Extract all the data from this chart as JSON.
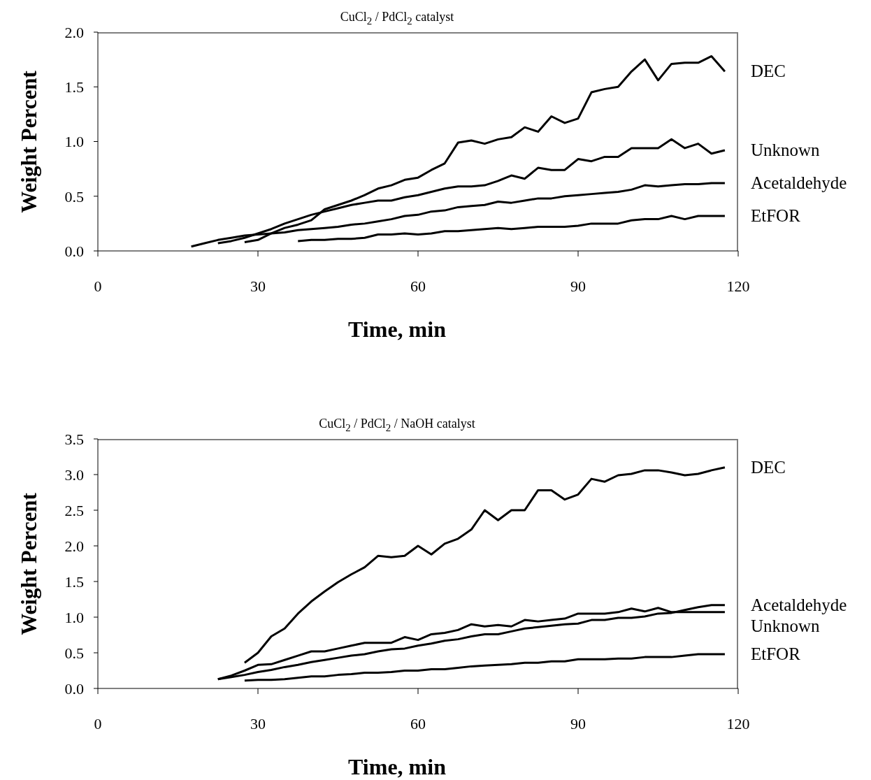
{
  "chart_data": [
    {
      "type": "line",
      "title": "CuCl$_{2}$ / PdCl$_{2}$ catalyst",
      "xlabel": "Time, min",
      "ylabel": "Weight Percent",
      "xlim": [
        0,
        120
      ],
      "xticks": [
        0,
        30,
        60,
        90,
        120
      ],
      "ylim": [
        0,
        2
      ],
      "yticks": [
        {
          "value": 0,
          "label": "0.0"
        },
        {
          "value": 0.5,
          "label": "0.5"
        },
        {
          "value": 1,
          "label": "1.0"
        },
        {
          "value": 1.5,
          "label": "1.5"
        },
        {
          "value": 2,
          "label": "2.0"
        }
      ],
      "series": [
        {
          "name": "DEC",
          "color": "#000000",
          "x": [
            27.5,
            30,
            32.5,
            35,
            37.5,
            40,
            42.5,
            45,
            47.5,
            50,
            52.5,
            55,
            57.5,
            60,
            62.5,
            65,
            67.5,
            70,
            72.5,
            75,
            77.5,
            80,
            82.5,
            85,
            87.5,
            90,
            92.5,
            95,
            97.5,
            100,
            102.5,
            105,
            107.5,
            110,
            112.5,
            115,
            117.5
          ],
          "values": [
            0.08,
            0.1,
            0.16,
            0.21,
            0.24,
            0.28,
            0.38,
            0.42,
            0.46,
            0.51,
            0.57,
            0.6,
            0.65,
            0.67,
            0.74,
            0.8,
            0.99,
            1.01,
            0.98,
            1.02,
            1.04,
            1.13,
            1.09,
            1.23,
            1.17,
            1.21,
            1.45,
            1.48,
            1.5,
            1.64,
            1.75,
            1.56,
            1.71,
            1.72,
            1.72,
            1.78,
            1.64
          ]
        },
        {
          "name": "Unknown",
          "color": "#000000",
          "x": [
            22.5,
            25,
            27.5,
            30,
            32.5,
            35,
            37.5,
            40,
            42.5,
            45,
            47.5,
            50,
            52.5,
            55,
            57.5,
            60,
            62.5,
            65,
            67.5,
            70,
            72.5,
            75,
            77.5,
            80,
            82.5,
            85,
            87.5,
            90,
            92.5,
            95,
            97.5,
            100,
            102.5,
            105,
            107.5,
            110,
            112.5,
            115,
            117.5
          ],
          "values": [
            0.07,
            0.09,
            0.12,
            0.16,
            0.2,
            0.25,
            0.29,
            0.33,
            0.36,
            0.39,
            0.42,
            0.44,
            0.46,
            0.46,
            0.49,
            0.51,
            0.54,
            0.57,
            0.59,
            0.59,
            0.6,
            0.64,
            0.69,
            0.66,
            0.76,
            0.74,
            0.74,
            0.84,
            0.82,
            0.86,
            0.86,
            0.94,
            0.94,
            0.94,
            1.02,
            0.94,
            0.98,
            0.89,
            0.92
          ]
        },
        {
          "name": "Acetaldehyde",
          "color": "#000000",
          "x": [
            17.5,
            20,
            22.5,
            25,
            27.5,
            30,
            32.5,
            35,
            37.5,
            40,
            42.5,
            45,
            47.5,
            50,
            52.5,
            55,
            57.5,
            60,
            62.5,
            65,
            67.5,
            70,
            72.5,
            75,
            77.5,
            80,
            82.5,
            85,
            87.5,
            90,
            92.5,
            95,
            97.5,
            100,
            102.5,
            105,
            107.5,
            110,
            112.5,
            115,
            117.5
          ],
          "values": [
            0.04,
            0.07,
            0.1,
            0.12,
            0.14,
            0.15,
            0.16,
            0.17,
            0.19,
            0.2,
            0.21,
            0.22,
            0.24,
            0.25,
            0.27,
            0.29,
            0.32,
            0.33,
            0.36,
            0.37,
            0.4,
            0.41,
            0.42,
            0.45,
            0.44,
            0.46,
            0.48,
            0.48,
            0.5,
            0.51,
            0.52,
            0.53,
            0.54,
            0.56,
            0.6,
            0.59,
            0.6,
            0.61,
            0.61,
            0.62,
            0.62
          ]
        },
        {
          "name": "EtFOR",
          "color": "#000000",
          "x": [
            37.5,
            40,
            42.5,
            45,
            47.5,
            50,
            52.5,
            55,
            57.5,
            60,
            62.5,
            65,
            67.5,
            70,
            72.5,
            75,
            77.5,
            80,
            82.5,
            85,
            87.5,
            90,
            92.5,
            95,
            97.5,
            100,
            102.5,
            105,
            107.5,
            110,
            112.5,
            115,
            117.5
          ],
          "values": [
            0.09,
            0.1,
            0.1,
            0.11,
            0.11,
            0.12,
            0.15,
            0.15,
            0.16,
            0.15,
            0.16,
            0.18,
            0.18,
            0.19,
            0.2,
            0.21,
            0.2,
            0.21,
            0.22,
            0.22,
            0.22,
            0.23,
            0.25,
            0.25,
            0.25,
            0.28,
            0.29,
            0.29,
            0.32,
            0.29,
            0.32,
            0.32,
            0.32
          ]
        }
      ]
    },
    {
      "type": "line",
      "title": "CuCl$_{2}$ / PdCl$_{2}$ / NaOH catalyst",
      "xlabel": "Time, min",
      "ylabel": "Weight Percent",
      "xlim": [
        0,
        120
      ],
      "xticks": [
        0,
        30,
        60,
        90,
        120
      ],
      "ylim": [
        0,
        3.5
      ],
      "yticks": [
        {
          "value": 0,
          "label": "0.0"
        },
        {
          "value": 0.5,
          "label": "0.5"
        },
        {
          "value": 1,
          "label": "1.0"
        },
        {
          "value": 1.5,
          "label": "1.5"
        },
        {
          "value": 2,
          "label": "2.0"
        },
        {
          "value": 2.5,
          "label": "2.5"
        },
        {
          "value": 3,
          "label": "3.0"
        },
        {
          "value": 3.5,
          "label": "3.5"
        }
      ],
      "series": [
        {
          "name": "DEC",
          "color": "#000000",
          "x": [
            27.5,
            30,
            32.5,
            35,
            37.5,
            40,
            42.5,
            45,
            47.5,
            50,
            52.5,
            55,
            57.5,
            60,
            62.5,
            65,
            67.5,
            70,
            72.5,
            75,
            77.5,
            80,
            82.5,
            85,
            87.5,
            90,
            92.5,
            95,
            97.5,
            100,
            102.5,
            105,
            107.5,
            110,
            112.5,
            115,
            117.5
          ],
          "values": [
            0.36,
            0.5,
            0.73,
            0.84,
            1.05,
            1.22,
            1.36,
            1.49,
            1.6,
            1.7,
            1.86,
            1.84,
            1.86,
            2.0,
            1.88,
            2.03,
            2.1,
            2.23,
            2.5,
            2.36,
            2.5,
            2.5,
            2.78,
            2.78,
            2.65,
            2.72,
            2.94,
            2.9,
            2.99,
            3.01,
            3.06,
            3.06,
            3.03,
            2.99,
            3.01,
            3.06,
            3.1
          ]
        },
        {
          "name": "Acetaldehyde",
          "color": "#000000",
          "x": [
            22.5,
            25,
            27.5,
            30,
            32.5,
            35,
            37.5,
            40,
            42.5,
            45,
            47.5,
            50,
            52.5,
            55,
            57.5,
            60,
            62.5,
            65,
            67.5,
            70,
            72.5,
            75,
            77.5,
            80,
            82.5,
            85,
            87.5,
            90,
            92.5,
            95,
            97.5,
            100,
            102.5,
            105,
            107.5,
            110,
            112.5,
            115,
            117.5
          ],
          "values": [
            0.13,
            0.16,
            0.19,
            0.23,
            0.26,
            0.3,
            0.33,
            0.37,
            0.4,
            0.43,
            0.46,
            0.48,
            0.52,
            0.55,
            0.56,
            0.6,
            0.63,
            0.67,
            0.69,
            0.73,
            0.76,
            0.76,
            0.8,
            0.84,
            0.86,
            0.88,
            0.9,
            0.91,
            0.96,
            0.96,
            0.99,
            0.99,
            1.01,
            1.05,
            1.06,
            1.1,
            1.14,
            1.17,
            1.17
          ]
        },
        {
          "name": "Unknown",
          "color": "#000000",
          "x": [
            22.5,
            25,
            27.5,
            30,
            32.5,
            35,
            37.5,
            40,
            42.5,
            45,
            47.5,
            50,
            52.5,
            55,
            57.5,
            60,
            62.5,
            65,
            67.5,
            70,
            72.5,
            75,
            77.5,
            80,
            82.5,
            85,
            87.5,
            90,
            92.5,
            95,
            97.5,
            100,
            102.5,
            105,
            107.5,
            110,
            112.5,
            115,
            117.5
          ],
          "values": [
            0.13,
            0.18,
            0.25,
            0.33,
            0.34,
            0.4,
            0.46,
            0.52,
            0.52,
            0.56,
            0.6,
            0.64,
            0.64,
            0.64,
            0.72,
            0.68,
            0.76,
            0.78,
            0.82,
            0.9,
            0.87,
            0.89,
            0.87,
            0.96,
            0.94,
            0.96,
            0.98,
            1.05,
            1.05,
            1.05,
            1.07,
            1.12,
            1.08,
            1.13,
            1.07,
            1.07,
            1.07,
            1.07,
            1.07
          ]
        },
        {
          "name": "EtFOR",
          "color": "#000000",
          "x": [
            27.5,
            30,
            32.5,
            35,
            37.5,
            40,
            42.5,
            45,
            47.5,
            50,
            52.5,
            55,
            57.5,
            60,
            62.5,
            65,
            67.5,
            70,
            72.5,
            75,
            77.5,
            80,
            82.5,
            85,
            87.5,
            90,
            92.5,
            95,
            97.5,
            100,
            102.5,
            105,
            107.5,
            110,
            112.5,
            115,
            117.5
          ],
          "values": [
            0.11,
            0.12,
            0.12,
            0.13,
            0.15,
            0.17,
            0.17,
            0.19,
            0.2,
            0.22,
            0.22,
            0.23,
            0.25,
            0.25,
            0.27,
            0.27,
            0.29,
            0.31,
            0.32,
            0.33,
            0.34,
            0.36,
            0.36,
            0.38,
            0.38,
            0.41,
            0.41,
            0.41,
            0.42,
            0.42,
            0.44,
            0.44,
            0.44,
            0.46,
            0.48,
            0.48,
            0.48
          ]
        }
      ]
    }
  ]
}
